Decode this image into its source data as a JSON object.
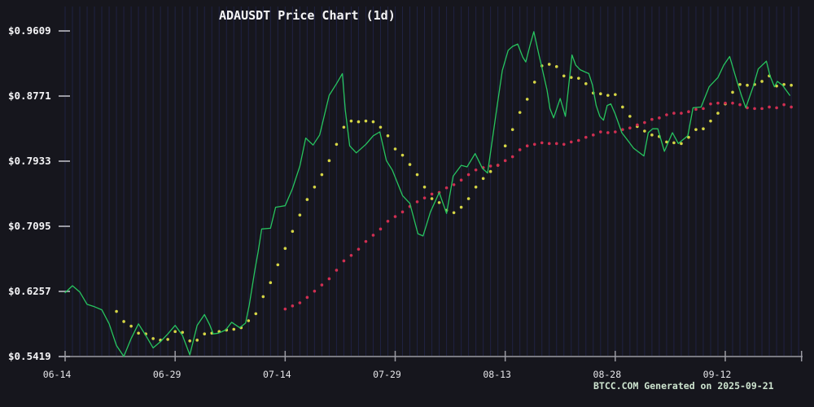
{
  "title": "ADAUSDT Price Chart (1d)",
  "watermark": "BTCC.COM Generated on 2025-09-21",
  "colors": {
    "background": "#16161d",
    "grid_stripe": "#272c62",
    "axis": "#9a9aa2",
    "tick_label": "#e4e4e8",
    "price_label": "#f4f4f6",
    "price_line": "#27c45f",
    "ma_short_dots": "#d6d645",
    "ma_long_dots": "#d12f52",
    "title_text": "#f5f5f7",
    "watermark_text": "#cde4cf"
  },
  "chart_data": {
    "type": "line",
    "title": "ADAUSDT Price Chart (1d)",
    "xlabel": "",
    "ylabel": "",
    "grid": "vertical-daily-stripes",
    "legend_position": "none",
    "ylim": [
      0.5419,
      0.9609
    ],
    "y_ticks": [
      {
        "label": "$0.9609",
        "value": 0.9609
      },
      {
        "label": "$0.8771",
        "value": 0.8771
      },
      {
        "label": "$0.7933",
        "value": 0.7933
      },
      {
        "label": "$0.7095",
        "value": 0.7095
      },
      {
        "label": "$0.6257",
        "value": 0.6257
      },
      {
        "label": "$0.5419",
        "value": 0.5419
      }
    ],
    "x_ticks": [
      {
        "label": "06-14",
        "day": 0
      },
      {
        "label": "06-29",
        "day": 15
      },
      {
        "label": "07-14",
        "day": 30
      },
      {
        "label": "07-29",
        "day": 45
      },
      {
        "label": "08-13",
        "day": 60
      },
      {
        "label": "08-28",
        "day": 75
      },
      {
        "label": "09-12",
        "day": 90
      }
    ],
    "x_end_tick_day": 100.4,
    "x_days_total": 100,
    "series": [
      {
        "name": "price",
        "style": "line",
        "points": [
          [
            0,
            0.624
          ],
          [
            1,
            0.633
          ],
          [
            2,
            0.625
          ],
          [
            3,
            0.609
          ],
          [
            4,
            0.606
          ],
          [
            5,
            0.602
          ],
          [
            6,
            0.584
          ],
          [
            7,
            0.556
          ],
          [
            8,
            0.542
          ],
          [
            9,
            0.565
          ],
          [
            10,
            0.584
          ],
          [
            11,
            0.569
          ],
          [
            12,
            0.553
          ],
          [
            13,
            0.561
          ],
          [
            14,
            0.571
          ],
          [
            15,
            0.582
          ],
          [
            16,
            0.569
          ],
          [
            17,
            0.544
          ],
          [
            18,
            0.582
          ],
          [
            19,
            0.596
          ],
          [
            19.7,
            0.583
          ],
          [
            20.2,
            0.571
          ],
          [
            20.9,
            0.572
          ],
          [
            21.9,
            0.576
          ],
          [
            22.7,
            0.586
          ],
          [
            23.8,
            0.579
          ],
          [
            24.6,
            0.585
          ],
          [
            25.1,
            0.608
          ],
          [
            25.9,
            0.655
          ],
          [
            26.3,
            0.676
          ],
          [
            26.8,
            0.706
          ],
          [
            28,
            0.707
          ],
          [
            28.7,
            0.734
          ],
          [
            30,
            0.736
          ],
          [
            31,
            0.758
          ],
          [
            32,
            0.787
          ],
          [
            32.8,
            0.823
          ],
          [
            33.8,
            0.814
          ],
          [
            34.7,
            0.827
          ],
          [
            36,
            0.878
          ],
          [
            37,
            0.893
          ],
          [
            37.8,
            0.906
          ],
          [
            38.2,
            0.859
          ],
          [
            38.8,
            0.813
          ],
          [
            39.7,
            0.804
          ],
          [
            41,
            0.815
          ],
          [
            42,
            0.826
          ],
          [
            42.9,
            0.831
          ],
          [
            43.8,
            0.794
          ],
          [
            44.6,
            0.782
          ],
          [
            46,
            0.749
          ],
          [
            47,
            0.739
          ],
          [
            48.1,
            0.7
          ],
          [
            48.8,
            0.697
          ],
          [
            49.8,
            0.728
          ],
          [
            51,
            0.753
          ],
          [
            52,
            0.726
          ],
          [
            52.9,
            0.774
          ],
          [
            54,
            0.788
          ],
          [
            54.8,
            0.786
          ],
          [
            55.9,
            0.803
          ],
          [
            56.9,
            0.784
          ],
          [
            57.6,
            0.778
          ],
          [
            58.9,
            0.865
          ],
          [
            59.6,
            0.91
          ],
          [
            60.4,
            0.936
          ],
          [
            61,
            0.941
          ],
          [
            61.7,
            0.944
          ],
          [
            62.4,
            0.927
          ],
          [
            62.8,
            0.921
          ],
          [
            63.4,
            0.943
          ],
          [
            63.9,
            0.96
          ],
          [
            64.6,
            0.93
          ],
          [
            65.1,
            0.91
          ],
          [
            65.7,
            0.885
          ],
          [
            66.1,
            0.861
          ],
          [
            66.6,
            0.849
          ],
          [
            67.5,
            0.874
          ],
          [
            68.2,
            0.851
          ],
          [
            69.1,
            0.93
          ],
          [
            69.6,
            0.917
          ],
          [
            70.2,
            0.911
          ],
          [
            70.9,
            0.908
          ],
          [
            71.4,
            0.906
          ],
          [
            71.9,
            0.891
          ],
          [
            72.4,
            0.865
          ],
          [
            72.9,
            0.851
          ],
          [
            73.4,
            0.846
          ],
          [
            73.9,
            0.865
          ],
          [
            74.4,
            0.867
          ],
          [
            75,
            0.854
          ],
          [
            75.9,
            0.83
          ],
          [
            76.7,
            0.82
          ],
          [
            77.5,
            0.81
          ],
          [
            78.9,
            0.8
          ],
          [
            79.5,
            0.83
          ],
          [
            80.1,
            0.835
          ],
          [
            80.8,
            0.835
          ],
          [
            81.7,
            0.806
          ],
          [
            82.8,
            0.83
          ],
          [
            83.6,
            0.816
          ],
          [
            84.9,
            0.826
          ],
          [
            85.6,
            0.862
          ],
          [
            86.7,
            0.863
          ],
          [
            87.8,
            0.889
          ],
          [
            89,
            0.901
          ],
          [
            89.8,
            0.917
          ],
          [
            90.6,
            0.928
          ],
          [
            91.6,
            0.896
          ],
          [
            92.2,
            0.878
          ],
          [
            92.8,
            0.862
          ],
          [
            93.8,
            0.889
          ],
          [
            94.5,
            0.912
          ],
          [
            95.6,
            0.922
          ],
          [
            96.1,
            0.903
          ],
          [
            96.7,
            0.889
          ],
          [
            97.1,
            0.896
          ],
          [
            97.8,
            0.891
          ],
          [
            98.8,
            0.878
          ]
        ]
      },
      {
        "name": "ma-short",
        "style": "dots",
        "start_day": 7,
        "values": [
          0.6,
          0.587,
          0.581,
          0.572,
          0.571,
          0.565,
          0.563,
          0.564,
          0.574,
          0.573,
          0.562,
          0.563,
          0.571,
          0.572,
          0.574,
          0.576,
          0.577,
          0.579,
          0.588,
          0.597,
          0.619,
          0.637,
          0.66,
          0.681,
          0.703,
          0.724,
          0.744,
          0.76,
          0.776,
          0.794,
          0.815,
          0.837,
          0.845,
          0.844,
          0.845,
          0.844,
          0.837,
          0.826,
          0.809,
          0.801,
          0.789,
          0.776,
          0.76,
          0.745,
          0.74,
          0.73,
          0.727,
          0.734,
          0.745,
          0.76,
          0.771,
          0.78,
          0.788,
          0.813,
          0.834,
          0.856,
          0.873,
          0.895,
          0.916,
          0.918,
          0.915,
          0.903,
          0.901,
          0.9,
          0.893,
          0.881,
          0.88,
          0.878,
          0.879,
          0.863,
          0.851,
          0.838,
          0.832,
          0.827,
          0.825,
          0.818,
          0.817,
          0.816,
          0.824,
          0.834,
          0.835,
          0.845,
          0.855,
          0.867,
          0.882,
          0.892,
          0.891,
          0.892,
          0.896,
          0.903,
          0.89,
          0.892,
          0.891
        ]
      },
      {
        "name": "ma-long",
        "style": "dots",
        "start_day": 30,
        "values": [
          0.603,
          0.607,
          0.611,
          0.618,
          0.626,
          0.634,
          0.642,
          0.653,
          0.665,
          0.672,
          0.68,
          0.69,
          0.698,
          0.706,
          0.716,
          0.722,
          0.728,
          0.735,
          0.741,
          0.746,
          0.751,
          0.753,
          0.759,
          0.763,
          0.769,
          0.776,
          0.782,
          0.785,
          0.787,
          0.788,
          0.794,
          0.799,
          0.808,
          0.813,
          0.815,
          0.817,
          0.816,
          0.816,
          0.815,
          0.818,
          0.82,
          0.824,
          0.827,
          0.831,
          0.83,
          0.831,
          0.834,
          0.836,
          0.84,
          0.843,
          0.847,
          0.849,
          0.853,
          0.855,
          0.855,
          0.857,
          0.86,
          0.861,
          0.867,
          0.868,
          0.868,
          0.868,
          0.866,
          0.862,
          0.861,
          0.861,
          0.863,
          0.862,
          0.866,
          0.863
        ]
      }
    ]
  }
}
